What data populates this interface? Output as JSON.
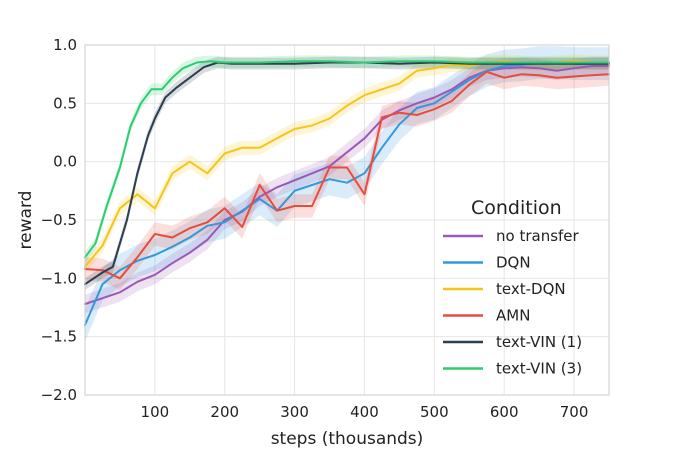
{
  "chart_data": {
    "type": "line",
    "xlabel": "steps (thousands)",
    "ylabel": "reward",
    "xlim": [
      0,
      750
    ],
    "ylim": [
      -2.0,
      1.0
    ],
    "xticks": [
      100,
      200,
      300,
      400,
      500,
      600,
      700
    ],
    "yticks": [
      -2.0,
      -1.5,
      -1.0,
      -0.5,
      0.0,
      0.5,
      1.0
    ],
    "ytick_labels": [
      "−2.0",
      "−1.5",
      "−1.0",
      "−0.5",
      "0.0",
      "0.5",
      "1.0"
    ],
    "grid": true,
    "legend": {
      "title": "Condition",
      "position": "center-right"
    },
    "series": [
      {
        "name": "no transfer",
        "color": "#9b59b6",
        "x": [
          0,
          25,
          50,
          75,
          100,
          125,
          150,
          175,
          200,
          225,
          250,
          275,
          300,
          325,
          350,
          375,
          400,
          425,
          450,
          475,
          500,
          525,
          550,
          575,
          600,
          625,
          650,
          675,
          700,
          725,
          750
        ],
        "y": [
          -1.22,
          -1.17,
          -1.12,
          -1.03,
          -0.97,
          -0.87,
          -0.78,
          -0.67,
          -0.5,
          -0.43,
          -0.3,
          -0.22,
          -0.16,
          -0.1,
          -0.04,
          0.08,
          0.2,
          0.36,
          0.44,
          0.5,
          0.55,
          0.62,
          0.72,
          0.78,
          0.8,
          0.81,
          0.8,
          0.78,
          0.8,
          0.82,
          0.82
        ],
        "band": 0.08
      },
      {
        "name": "DQN",
        "color": "#3498db",
        "x": [
          0,
          25,
          50,
          75,
          100,
          125,
          150,
          175,
          200,
          225,
          250,
          275,
          300,
          325,
          350,
          375,
          400,
          425,
          450,
          475,
          500,
          525,
          550,
          575,
          600,
          625,
          650,
          675,
          700,
          725,
          750
        ],
        "y": [
          -1.4,
          -1.05,
          -0.93,
          -0.85,
          -0.8,
          -0.73,
          -0.65,
          -0.55,
          -0.52,
          -0.42,
          -0.32,
          -0.42,
          -0.25,
          -0.2,
          -0.15,
          -0.18,
          -0.1,
          0.12,
          0.32,
          0.46,
          0.5,
          0.6,
          0.7,
          0.78,
          0.82,
          0.83,
          0.85,
          0.85,
          0.84,
          0.84,
          0.84
        ],
        "band": 0.14
      },
      {
        "name": "text-DQN",
        "color": "#f5c518",
        "x": [
          0,
          25,
          50,
          75,
          100,
          125,
          150,
          175,
          200,
          225,
          250,
          275,
          300,
          325,
          350,
          375,
          400,
          425,
          450,
          475,
          500,
          525,
          550,
          575,
          600,
          625,
          650,
          675,
          700,
          725,
          750
        ],
        "y": [
          -0.9,
          -0.72,
          -0.4,
          -0.28,
          -0.4,
          -0.1,
          0.0,
          -0.1,
          0.07,
          0.12,
          0.12,
          0.2,
          0.28,
          0.31,
          0.37,
          0.48,
          0.57,
          0.62,
          0.67,
          0.78,
          0.8,
          0.83,
          0.82,
          0.85,
          0.86,
          0.85,
          0.84,
          0.85,
          0.86,
          0.85,
          0.85
        ],
        "band": 0.06
      },
      {
        "name": "AMN",
        "color": "#e74c3c",
        "x": [
          0,
          25,
          50,
          75,
          100,
          125,
          150,
          175,
          200,
          225,
          250,
          275,
          300,
          325,
          350,
          375,
          400,
          425,
          450,
          475,
          500,
          525,
          550,
          575,
          600,
          625,
          650,
          675,
          700,
          725,
          750
        ],
        "y": [
          -0.92,
          -0.93,
          -1.0,
          -0.82,
          -0.62,
          -0.65,
          -0.57,
          -0.52,
          -0.4,
          -0.56,
          -0.2,
          -0.42,
          -0.38,
          -0.38,
          -0.05,
          -0.05,
          -0.28,
          0.38,
          0.42,
          0.4,
          0.45,
          0.52,
          0.66,
          0.77,
          0.72,
          0.75,
          0.74,
          0.72,
          0.73,
          0.74,
          0.75
        ],
        "band": 0.1
      },
      {
        "name": "text-VIN (1)",
        "color": "#2c3e50",
        "x": [
          0,
          25,
          40,
          60,
          75,
          90,
          100,
          115,
          130,
          150,
          170,
          190,
          210,
          250,
          300,
          350,
          400,
          450,
          500,
          550,
          600,
          650,
          700,
          750
        ],
        "y": [
          -1.05,
          -0.95,
          -0.9,
          -0.5,
          -0.1,
          0.22,
          0.37,
          0.55,
          0.63,
          0.72,
          0.81,
          0.85,
          0.84,
          0.84,
          0.84,
          0.85,
          0.85,
          0.84,
          0.85,
          0.84,
          0.84,
          0.84,
          0.84,
          0.84
        ],
        "band": 0.05
      },
      {
        "name": "text-VIN (3)",
        "color": "#2ecc71",
        "x": [
          0,
          15,
          30,
          50,
          65,
          80,
          95,
          110,
          125,
          140,
          160,
          180,
          200,
          250,
          300,
          350,
          400,
          450,
          500,
          550,
          600,
          650,
          700,
          750
        ],
        "y": [
          -0.82,
          -0.7,
          -0.4,
          -0.05,
          0.3,
          0.5,
          0.62,
          0.62,
          0.72,
          0.8,
          0.85,
          0.86,
          0.85,
          0.85,
          0.86,
          0.86,
          0.85,
          0.86,
          0.86,
          0.85,
          0.85,
          0.85,
          0.85,
          0.85
        ],
        "band": 0.05
      }
    ]
  }
}
